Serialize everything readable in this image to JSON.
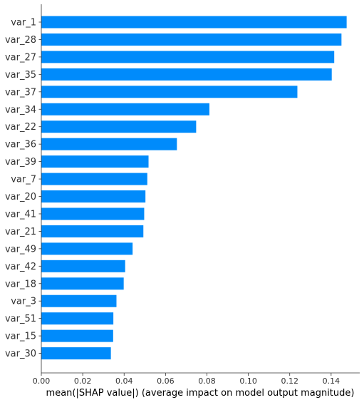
{
  "chart_data": {
    "type": "bar",
    "orientation": "horizontal",
    "categories": [
      "var_1",
      "var_28",
      "var_27",
      "var_35",
      "var_37",
      "var_34",
      "var_22",
      "var_36",
      "var_39",
      "var_7",
      "var_20",
      "var_41",
      "var_21",
      "var_49",
      "var_42",
      "var_18",
      "var_3",
      "var_51",
      "var_15",
      "var_30"
    ],
    "values": [
      0.1475,
      0.145,
      0.1415,
      0.1403,
      0.1237,
      0.0812,
      0.0748,
      0.0655,
      0.0518,
      0.0512,
      0.0503,
      0.0497,
      0.0493,
      0.0441,
      0.0405,
      0.0398,
      0.0363,
      0.0348,
      0.0347,
      0.0336
    ],
    "xlabel": "mean(|SHAP value|) (average impact on model output magnitude)",
    "ylabel": "",
    "xlim": [
      0,
      0.155
    ],
    "xticks": [
      0.0,
      0.02,
      0.04,
      0.06,
      0.08,
      0.1,
      0.12,
      0.14
    ],
    "xtick_labels": [
      "0.00",
      "0.02",
      "0.04",
      "0.06",
      "0.08",
      "0.10",
      "0.12",
      "0.14"
    ],
    "bar_color": "#008bfb",
    "grid": false
  }
}
